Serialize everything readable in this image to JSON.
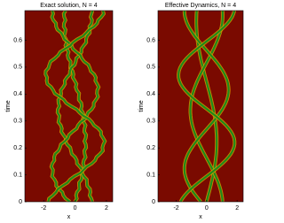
{
  "chart_data": [
    {
      "type": "heatmap",
      "title": "Exact solution, N = 4",
      "xlabel": "x",
      "ylabel": "time",
      "xlim": [
        -3.2,
        2.4
      ],
      "xticks": [
        -2,
        0,
        2
      ],
      "ylim": [
        0,
        0.71
      ],
      "yticks": [
        0,
        0.1,
        0.2,
        0.3,
        0.4,
        0.5,
        0.6
      ]
    },
    {
      "type": "heatmap",
      "title": "Effective Dynamics, N = 4",
      "xlabel": "x",
      "ylabel": "time",
      "xlim": [
        -3.2,
        2.4
      ],
      "xticks": [
        -2,
        0,
        2
      ],
      "ylim": [
        0,
        0.71
      ],
      "yticks": [
        0,
        0.1,
        0.2,
        0.3,
        0.4,
        0.5,
        0.6
      ]
    }
  ]
}
